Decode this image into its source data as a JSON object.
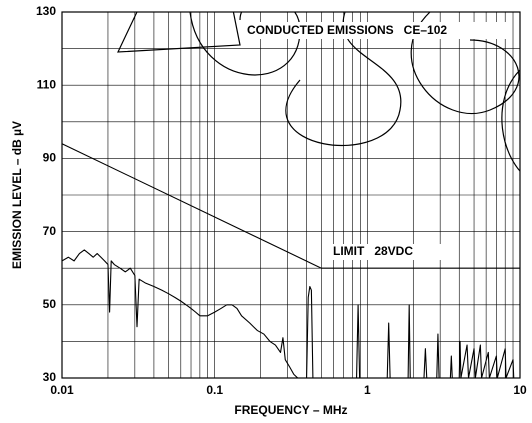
{
  "chart_data": {
    "type": "line",
    "x_label": "FREQUENCY – MHz",
    "y_label": "EMISSION LEVEL – dB µV",
    "annotations": [
      "CONDUCTED EMISSIONS   CE–102",
      "LIMIT   28VDC"
    ],
    "log_x": true,
    "grid": true,
    "xlim": [
      0.01,
      10
    ],
    "xticks": [
      0.01,
      0.1,
      1,
      10
    ],
    "x_minor_ticks": [
      0.02,
      0.03,
      0.04,
      0.05,
      0.06,
      0.07,
      0.08,
      0.09,
      0.2,
      0.3,
      0.4,
      0.5,
      0.6,
      0.7,
      0.8,
      0.9,
      2,
      3,
      4,
      5,
      6,
      7,
      8,
      9
    ],
    "ylim": [
      30,
      130
    ],
    "yticks": [
      30,
      50,
      70,
      90,
      110,
      130
    ],
    "y_minor_ticks": [
      40,
      60,
      80,
      100,
      120
    ],
    "series": [
      {
        "name": "Emission",
        "color": "#000000",
        "x": [
          0.01,
          0.011,
          0.012,
          0.013,
          0.014,
          0.015,
          0.016,
          0.017,
          0.018,
          0.019,
          0.02,
          0.0205,
          0.021,
          0.022,
          0.024,
          0.026,
          0.028,
          0.03,
          0.031,
          0.032,
          0.035,
          0.04,
          0.045,
          0.05,
          0.055,
          0.06,
          0.065,
          0.07,
          0.075,
          0.08,
          0.09,
          0.1,
          0.11,
          0.12,
          0.13,
          0.14,
          0.15,
          0.17,
          0.19,
          0.21,
          0.23,
          0.25,
          0.27,
          0.28,
          0.29,
          0.31,
          0.33,
          0.35,
          0.4,
          0.41,
          0.42,
          0.43,
          0.44,
          0.85,
          0.87,
          0.89,
          1.35,
          1.38,
          1.41,
          1.85,
          1.88,
          1.91,
          2.35,
          2.4,
          2.45,
          2.85,
          2.9,
          2.95,
          3.5,
          3.55,
          3.6,
          4.0,
          4.05,
          4.1,
          4.5,
          4.6,
          5.0,
          5.1,
          5.5,
          5.6,
          6.2,
          6.3,
          7.0,
          7.1,
          8.0,
          8.1,
          9.0,
          9.1,
          10
        ],
        "values": [
          62,
          63,
          62,
          64,
          65,
          64,
          63,
          64,
          63,
          62,
          61,
          48,
          62,
          61,
          60,
          59,
          60,
          58,
          44,
          57,
          56,
          55,
          54,
          53,
          52,
          51,
          50,
          49,
          48,
          47,
          47,
          48,
          49,
          50,
          50,
          49,
          47,
          45,
          43,
          42,
          40,
          39,
          37,
          41,
          35,
          33,
          31,
          30,
          30,
          52,
          55,
          54,
          30,
          30,
          50,
          30,
          30,
          45,
          30,
          30,
          50,
          30,
          30,
          38,
          30,
          30,
          42,
          30,
          30,
          36,
          30,
          30,
          40,
          30,
          39,
          30,
          38,
          30,
          39,
          30,
          37,
          30,
          36,
          30,
          38,
          30,
          35,
          30,
          30
        ]
      },
      {
        "name": "Limit 28VDC",
        "color": "#000000",
        "x": [
          0.01,
          0.5,
          10
        ],
        "values": [
          94,
          60,
          60
        ]
      }
    ]
  }
}
